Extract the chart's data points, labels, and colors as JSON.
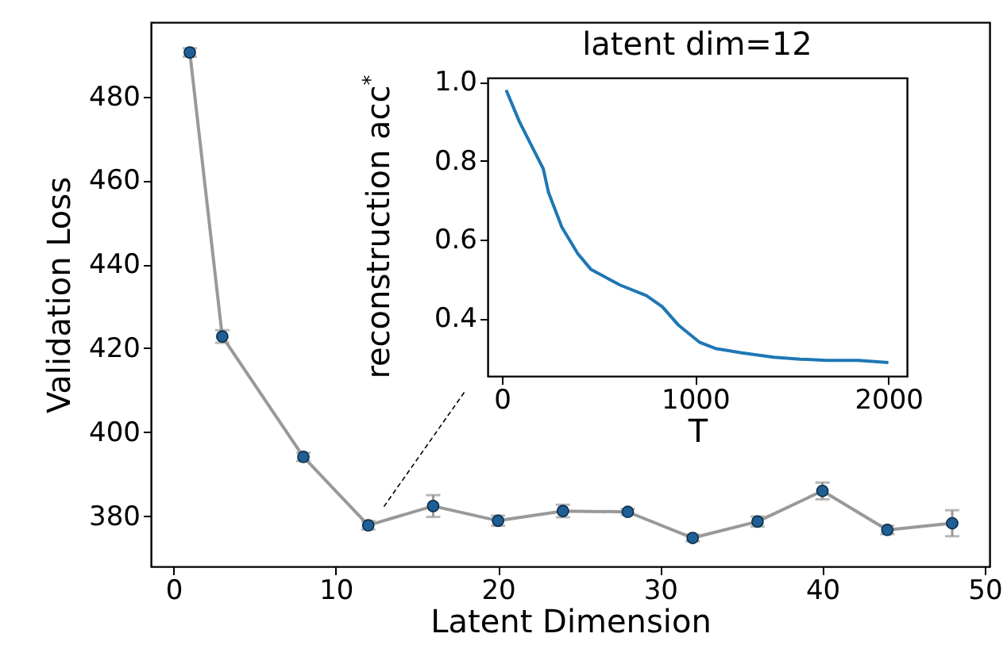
{
  "chart_data": [
    {
      "type": "line",
      "xlabel": "Latent Dimension",
      "ylabel": "Validation Loss",
      "x": [
        1,
        3,
        8,
        12,
        16,
        20,
        24,
        28,
        32,
        36,
        40,
        44,
        48
      ],
      "xlim": [
        -1.4,
        50.3
      ],
      "ylim": [
        368,
        497.7
      ],
      "xticks": [
        0,
        10,
        20,
        30,
        40,
        50
      ],
      "yticks": [
        380,
        400,
        420,
        440,
        460,
        480
      ],
      "series": [
        {
          "type": "line",
          "color": "#999999",
          "values": [
            490.5,
            422.8,
            394.1,
            377.8,
            382.4,
            378.9,
            381.2,
            381,
            374.8,
            378.7,
            386,
            376.7,
            378.3
          ],
          "errors": [
            1,
            1.5,
            1,
            1,
            2.6,
            1.2,
            1.5,
            0.7,
            0.8,
            1.2,
            2,
            1,
            3.1
          ]
        },
        {
          "type": "scatter",
          "color": "#1f5f96",
          "marker": "circle",
          "values": [
            490.5,
            422.8,
            394.1,
            377.8,
            382.4,
            378.9,
            381.2,
            381,
            374.8,
            378.7,
            386,
            376.7,
            378.3
          ]
        }
      ]
    },
    {
      "type": "line",
      "title": "latent dim=12",
      "xlabel": "T",
      "ylabel": "reconstruction acc$^{*}$",
      "xlim": [
        -74,
        2096
      ],
      "ylim": [
        0.254,
        1.011
      ],
      "xticks": [
        0,
        1000,
        2000
      ],
      "yticks": [
        {
          "value": 0.4,
          "label": "0.4"
        },
        {
          "value": 0.6,
          "label": "0.6"
        },
        {
          "value": 0.8,
          "label": "0.8"
        },
        {
          "value": 1,
          "label": "1.0"
        }
      ],
      "series": [
        {
          "color": "#1f77b4",
          "x": [
            22,
            90,
            159,
            214,
            241,
            310,
            392,
            460,
            611,
            748,
            830,
            912,
            1022,
            1104,
            1241,
            1406,
            1543,
            1680,
            1844,
            2000
          ],
          "values": [
            0.98,
            0.9,
            0.833,
            0.78,
            0.72,
            0.632,
            0.565,
            0.525,
            0.485,
            0.458,
            0.43,
            0.384,
            0.34,
            0.324,
            0.313,
            0.302,
            0.297,
            0.294,
            0.294,
            0.288
          ]
        }
      ]
    }
  ]
}
